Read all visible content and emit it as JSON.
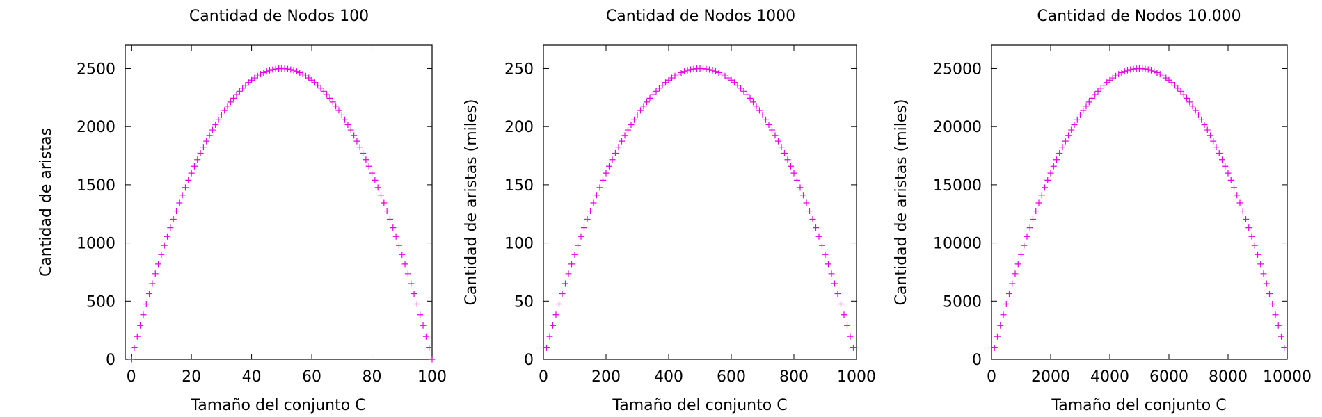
{
  "chart_data": [
    {
      "type": "scatter",
      "title": "Cantidad de Nodos 100",
      "xlabel": "Tamaño del conjunto C",
      "ylabel": "Cantidad de aristas",
      "xlim": [
        -2,
        100
      ],
      "ylim": [
        0,
        2700
      ],
      "xticks": [
        0,
        20,
        40,
        60,
        80,
        100
      ],
      "xtick_labels": [
        "0",
        "20",
        "40",
        "60",
        "80",
        "100"
      ],
      "yticks": [
        0,
        500,
        1000,
        1500,
        2000,
        2500
      ],
      "ytick_labels": [
        "0",
        "500",
        "1000",
        "1500",
        "2000",
        "2500"
      ],
      "marker": "+",
      "color": "#e600e6",
      "grid": false,
      "series": [
        {
          "x": [
            0,
            1,
            2,
            3,
            4,
            5,
            6,
            7,
            8,
            9,
            10,
            11,
            12,
            13,
            14,
            15,
            16,
            17,
            18,
            19,
            20,
            21,
            22,
            23,
            24,
            25,
            26,
            27,
            28,
            29,
            30,
            31,
            32,
            33,
            34,
            35,
            36,
            37,
            38,
            39,
            40,
            41,
            42,
            43,
            44,
            45,
            46,
            47,
            48,
            49,
            50,
            51,
            52,
            53,
            54,
            55,
            56,
            57,
            58,
            59,
            60,
            61,
            62,
            63,
            64,
            65,
            66,
            67,
            68,
            69,
            70,
            71,
            72,
            73,
            74,
            75,
            76,
            77,
            78,
            79,
            80,
            81,
            82,
            83,
            84,
            85,
            86,
            87,
            88,
            89,
            90,
            91,
            92,
            93,
            94,
            95,
            96,
            97,
            98,
            99,
            100
          ],
          "y": [
            0,
            99,
            196,
            291,
            384,
            475,
            564,
            651,
            736,
            819,
            900,
            979,
            1056,
            1131,
            1204,
            1275,
            1344,
            1411,
            1476,
            1539,
            1600,
            1659,
            1716,
            1771,
            1824,
            1875,
            1924,
            1971,
            2016,
            2059,
            2100,
            2139,
            2176,
            2211,
            2244,
            2275,
            2304,
            2331,
            2356,
            2379,
            2400,
            2419,
            2436,
            2451,
            2464,
            2475,
            2484,
            2491,
            2496,
            2499,
            2500,
            2499,
            2496,
            2491,
            2484,
            2475,
            2464,
            2451,
            2436,
            2419,
            2400,
            2379,
            2356,
            2331,
            2304,
            2275,
            2244,
            2211,
            2176,
            2139,
            2100,
            2059,
            2016,
            1971,
            1924,
            1875,
            1824,
            1771,
            1716,
            1659,
            1600,
            1539,
            1476,
            1411,
            1344,
            1275,
            1204,
            1131,
            1056,
            979,
            900,
            819,
            736,
            651,
            564,
            475,
            384,
            291,
            196,
            99,
            0
          ]
        }
      ]
    },
    {
      "type": "scatter",
      "title": "Cantidad de Nodos 1000",
      "xlabel": "Tamaño del conjunto C",
      "ylabel": "Cantidad de aristas (miles)",
      "xlim": [
        0,
        1000
      ],
      "ylim": [
        0,
        270
      ],
      "xticks": [
        0,
        200,
        400,
        600,
        800,
        1000
      ],
      "xtick_labels": [
        "0",
        "200",
        "400",
        "600",
        "800",
        "1000"
      ],
      "yticks": [
        0,
        50,
        100,
        150,
        200,
        250
      ],
      "ytick_labels": [
        "0",
        "50",
        "100",
        "150",
        "200",
        "250"
      ],
      "marker": "+",
      "color": "#e600e6",
      "grid": false,
      "series": [
        {
          "x": [
            10,
            20,
            30,
            40,
            50,
            60,
            70,
            80,
            90,
            100,
            110,
            120,
            130,
            140,
            150,
            160,
            170,
            180,
            190,
            200,
            210,
            220,
            230,
            240,
            250,
            260,
            270,
            280,
            290,
            300,
            310,
            320,
            330,
            340,
            350,
            360,
            370,
            380,
            390,
            400,
            410,
            420,
            430,
            440,
            450,
            460,
            470,
            480,
            490,
            500,
            510,
            520,
            530,
            540,
            550,
            560,
            570,
            580,
            590,
            600,
            610,
            620,
            630,
            640,
            650,
            660,
            670,
            680,
            690,
            700,
            710,
            720,
            730,
            740,
            750,
            760,
            770,
            780,
            790,
            800,
            810,
            820,
            830,
            840,
            850,
            860,
            870,
            880,
            890,
            900,
            910,
            920,
            930,
            940,
            950,
            960,
            970,
            980,
            990
          ],
          "y": [
            9.9,
            19.6,
            29.1,
            38.4,
            47.5,
            56.4,
            65.1,
            73.6,
            81.9,
            90,
            97.9,
            105.6,
            113.1,
            120.4,
            127.5,
            134.4,
            141.1,
            147.6,
            153.9,
            160,
            165.9,
            171.6,
            177.1,
            182.4,
            187.5,
            192.4,
            197.1,
            201.6,
            205.9,
            210,
            213.9,
            217.6,
            221.1,
            224.4,
            227.5,
            230.4,
            233.1,
            235.6,
            237.9,
            240,
            241.9,
            243.6,
            245.1,
            246.4,
            247.5,
            248.4,
            249.1,
            249.6,
            249.9,
            250,
            249.9,
            249.6,
            249.1,
            248.4,
            247.5,
            246.4,
            245.1,
            243.6,
            241.9,
            240,
            237.9,
            235.6,
            233.1,
            230.4,
            227.5,
            224.4,
            221.1,
            217.6,
            213.9,
            210,
            205.9,
            201.6,
            197.1,
            192.4,
            187.5,
            182.4,
            177.1,
            171.6,
            165.9,
            160,
            153.9,
            147.6,
            141.1,
            134.4,
            127.5,
            120.4,
            113.1,
            105.6,
            97.9,
            90,
            81.9,
            73.6,
            65.1,
            56.4,
            47.5,
            38.4,
            29.1,
            19.6,
            9.9
          ]
        }
      ]
    },
    {
      "type": "scatter",
      "title": "Cantidad de Nodos 10.000",
      "xlabel": "Tamaño del conjunto C",
      "ylabel": "Cantidad de aristas (miles)",
      "xlim": [
        0,
        10000
      ],
      "ylim": [
        0,
        27000
      ],
      "xticks": [
        0,
        2000,
        4000,
        6000,
        8000,
        10000
      ],
      "xtick_labels": [
        "0",
        "2000",
        "4000",
        "6000",
        "8000",
        "10000"
      ],
      "yticks": [
        0,
        5000,
        10000,
        15000,
        20000,
        25000
      ],
      "ytick_labels": [
        "0",
        "5000",
        "10000",
        "15000",
        "20000",
        "25000"
      ],
      "marker": "+",
      "color": "#e600e6",
      "grid": false,
      "series": [
        {
          "x": [
            100,
            200,
            300,
            400,
            500,
            600,
            700,
            800,
            900,
            1000,
            1100,
            1200,
            1300,
            1400,
            1500,
            1600,
            1700,
            1800,
            1900,
            2000,
            2100,
            2200,
            2300,
            2400,
            2500,
            2600,
            2700,
            2800,
            2900,
            3000,
            3100,
            3200,
            3300,
            3400,
            3500,
            3600,
            3700,
            3800,
            3900,
            4000,
            4100,
            4200,
            4300,
            4400,
            4500,
            4600,
            4700,
            4800,
            4900,
            5000,
            5100,
            5200,
            5300,
            5400,
            5500,
            5600,
            5700,
            5800,
            5900,
            6000,
            6100,
            6200,
            6300,
            6400,
            6500,
            6600,
            6700,
            6800,
            6900,
            7000,
            7100,
            7200,
            7300,
            7400,
            7500,
            7600,
            7700,
            7800,
            7900,
            8000,
            8100,
            8200,
            8300,
            8400,
            8500,
            8600,
            8700,
            8800,
            8900,
            9000,
            9100,
            9200,
            9300,
            9400,
            9500,
            9600,
            9700,
            9800,
            9900
          ],
          "y": [
            990,
            1960,
            2910,
            3840,
            4750,
            5640,
            6510,
            7360,
            8190,
            9000,
            9790,
            10560,
            11310,
            12040,
            12750,
            13440,
            14110,
            14760,
            15390,
            16000,
            16590,
            17160,
            17710,
            18240,
            18750,
            19240,
            19710,
            20160,
            20590,
            21000,
            21390,
            21760,
            22110,
            22440,
            22750,
            23040,
            23310,
            23560,
            23790,
            24000,
            24190,
            24360,
            24510,
            24640,
            24750,
            24840,
            24910,
            24960,
            24990,
            25000,
            24990,
            24960,
            24910,
            24840,
            24750,
            24640,
            24510,
            24360,
            24190,
            24000,
            23790,
            23560,
            23310,
            23040,
            22750,
            22440,
            22110,
            21760,
            21390,
            21000,
            20590,
            20160,
            19710,
            19240,
            18750,
            18240,
            17710,
            17160,
            16590,
            16000,
            15390,
            14760,
            14110,
            13440,
            12750,
            12040,
            11310,
            10560,
            9790,
            9000,
            8190,
            7360,
            6510,
            5640,
            4750,
            3840,
            2910,
            1960,
            990
          ]
        }
      ]
    }
  ]
}
